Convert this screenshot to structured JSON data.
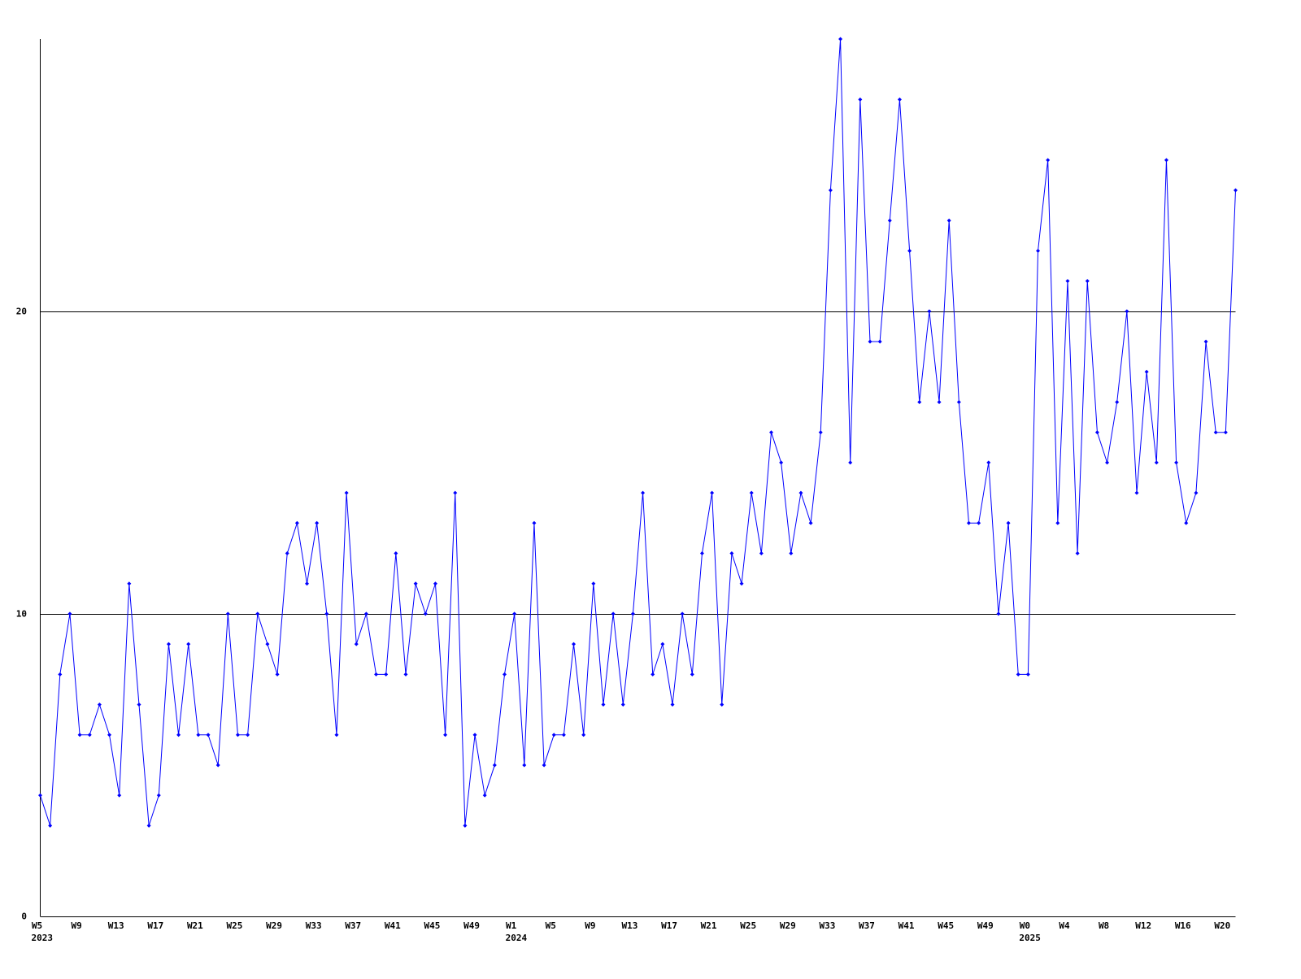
{
  "chart_data": {
    "type": "line",
    "categories": [
      "W5",
      null,
      null,
      null,
      "W9",
      null,
      null,
      null,
      "W13",
      null,
      null,
      null,
      "W17",
      null,
      null,
      null,
      "W21",
      null,
      null,
      null,
      "W25",
      null,
      null,
      null,
      "W29",
      null,
      null,
      null,
      "W33",
      null,
      null,
      null,
      "W37",
      null,
      null,
      null,
      "W41",
      null,
      null,
      null,
      "W45",
      null,
      null,
      null,
      "W49",
      null,
      null,
      null,
      "W1",
      null,
      null,
      null,
      "W5",
      null,
      null,
      null,
      "W9",
      null,
      null,
      null,
      "W13",
      null,
      null,
      null,
      "W17",
      null,
      null,
      null,
      "W21",
      null,
      null,
      null,
      "W25",
      null,
      null,
      null,
      "W29",
      null,
      null,
      null,
      "W33",
      null,
      null,
      null,
      "W37",
      null,
      null,
      null,
      "W41",
      null,
      null,
      null,
      "W45",
      null,
      null,
      null,
      "W49",
      null,
      null,
      null,
      "W0",
      null,
      null,
      null,
      "W4",
      null,
      null,
      null,
      "W8",
      null,
      null,
      null,
      "W12",
      null,
      null,
      null,
      "W16",
      null,
      null,
      null,
      "W20",
      null
    ],
    "category_groups": [
      "2023",
      null,
      null,
      null,
      null,
      null,
      null,
      null,
      null,
      null,
      null,
      null,
      null,
      null,
      null,
      null,
      null,
      null,
      null,
      null,
      null,
      null,
      null,
      null,
      null,
      null,
      null,
      null,
      null,
      null,
      null,
      null,
      null,
      null,
      null,
      null,
      null,
      null,
      null,
      null,
      null,
      null,
      null,
      null,
      null,
      null,
      null,
      null,
      "2024",
      null,
      null,
      null,
      null,
      null,
      null,
      null,
      null,
      null,
      null,
      null,
      null,
      null,
      null,
      null,
      null,
      null,
      null,
      null,
      null,
      null,
      null,
      null,
      null,
      null,
      null,
      null,
      null,
      null,
      null,
      null,
      null,
      null,
      null,
      null,
      null,
      null,
      null,
      null,
      null,
      null,
      null,
      null,
      null,
      null,
      null,
      null,
      null,
      null,
      null,
      null,
      "2025",
      null,
      null,
      null,
      null,
      null,
      null,
      null,
      null,
      null,
      null,
      null,
      null,
      null,
      null,
      null,
      null,
      null,
      null,
      null,
      null,
      null
    ],
    "series": [
      {
        "color": "#0000ff",
        "values": [
          4,
          3,
          8,
          10,
          6,
          6,
          7,
          6,
          4,
          11,
          7,
          3,
          4,
          9,
          6,
          9,
          6,
          6,
          5,
          10,
          6,
          6,
          10,
          9,
          8,
          12,
          13,
          11,
          13,
          10,
          6,
          14,
          9,
          10,
          8,
          8,
          12,
          8,
          11,
          10,
          11,
          6,
          14,
          3,
          6,
          4,
          5,
          8,
          10,
          5,
          13,
          5,
          6,
          6,
          9,
          6,
          11,
          7,
          10,
          7,
          10,
          14,
          8,
          9,
          7,
          10,
          8,
          12,
          14,
          7,
          12,
          11,
          14,
          12,
          16,
          15,
          12,
          14,
          13,
          16,
          24,
          29,
          15,
          27,
          19,
          19,
          23,
          27,
          22,
          17,
          20,
          17,
          23,
          17,
          13,
          13,
          15,
          10,
          13,
          8,
          8,
          22,
          25,
          13,
          21,
          12,
          21,
          16,
          15,
          17,
          20,
          14,
          18,
          15,
          25,
          15,
          13,
          14,
          19,
          16,
          16,
          24
        ]
      }
    ],
    "ylim": [
      0,
      29
    ],
    "yticks": [
      0,
      10,
      20
    ],
    "grid": true
  }
}
